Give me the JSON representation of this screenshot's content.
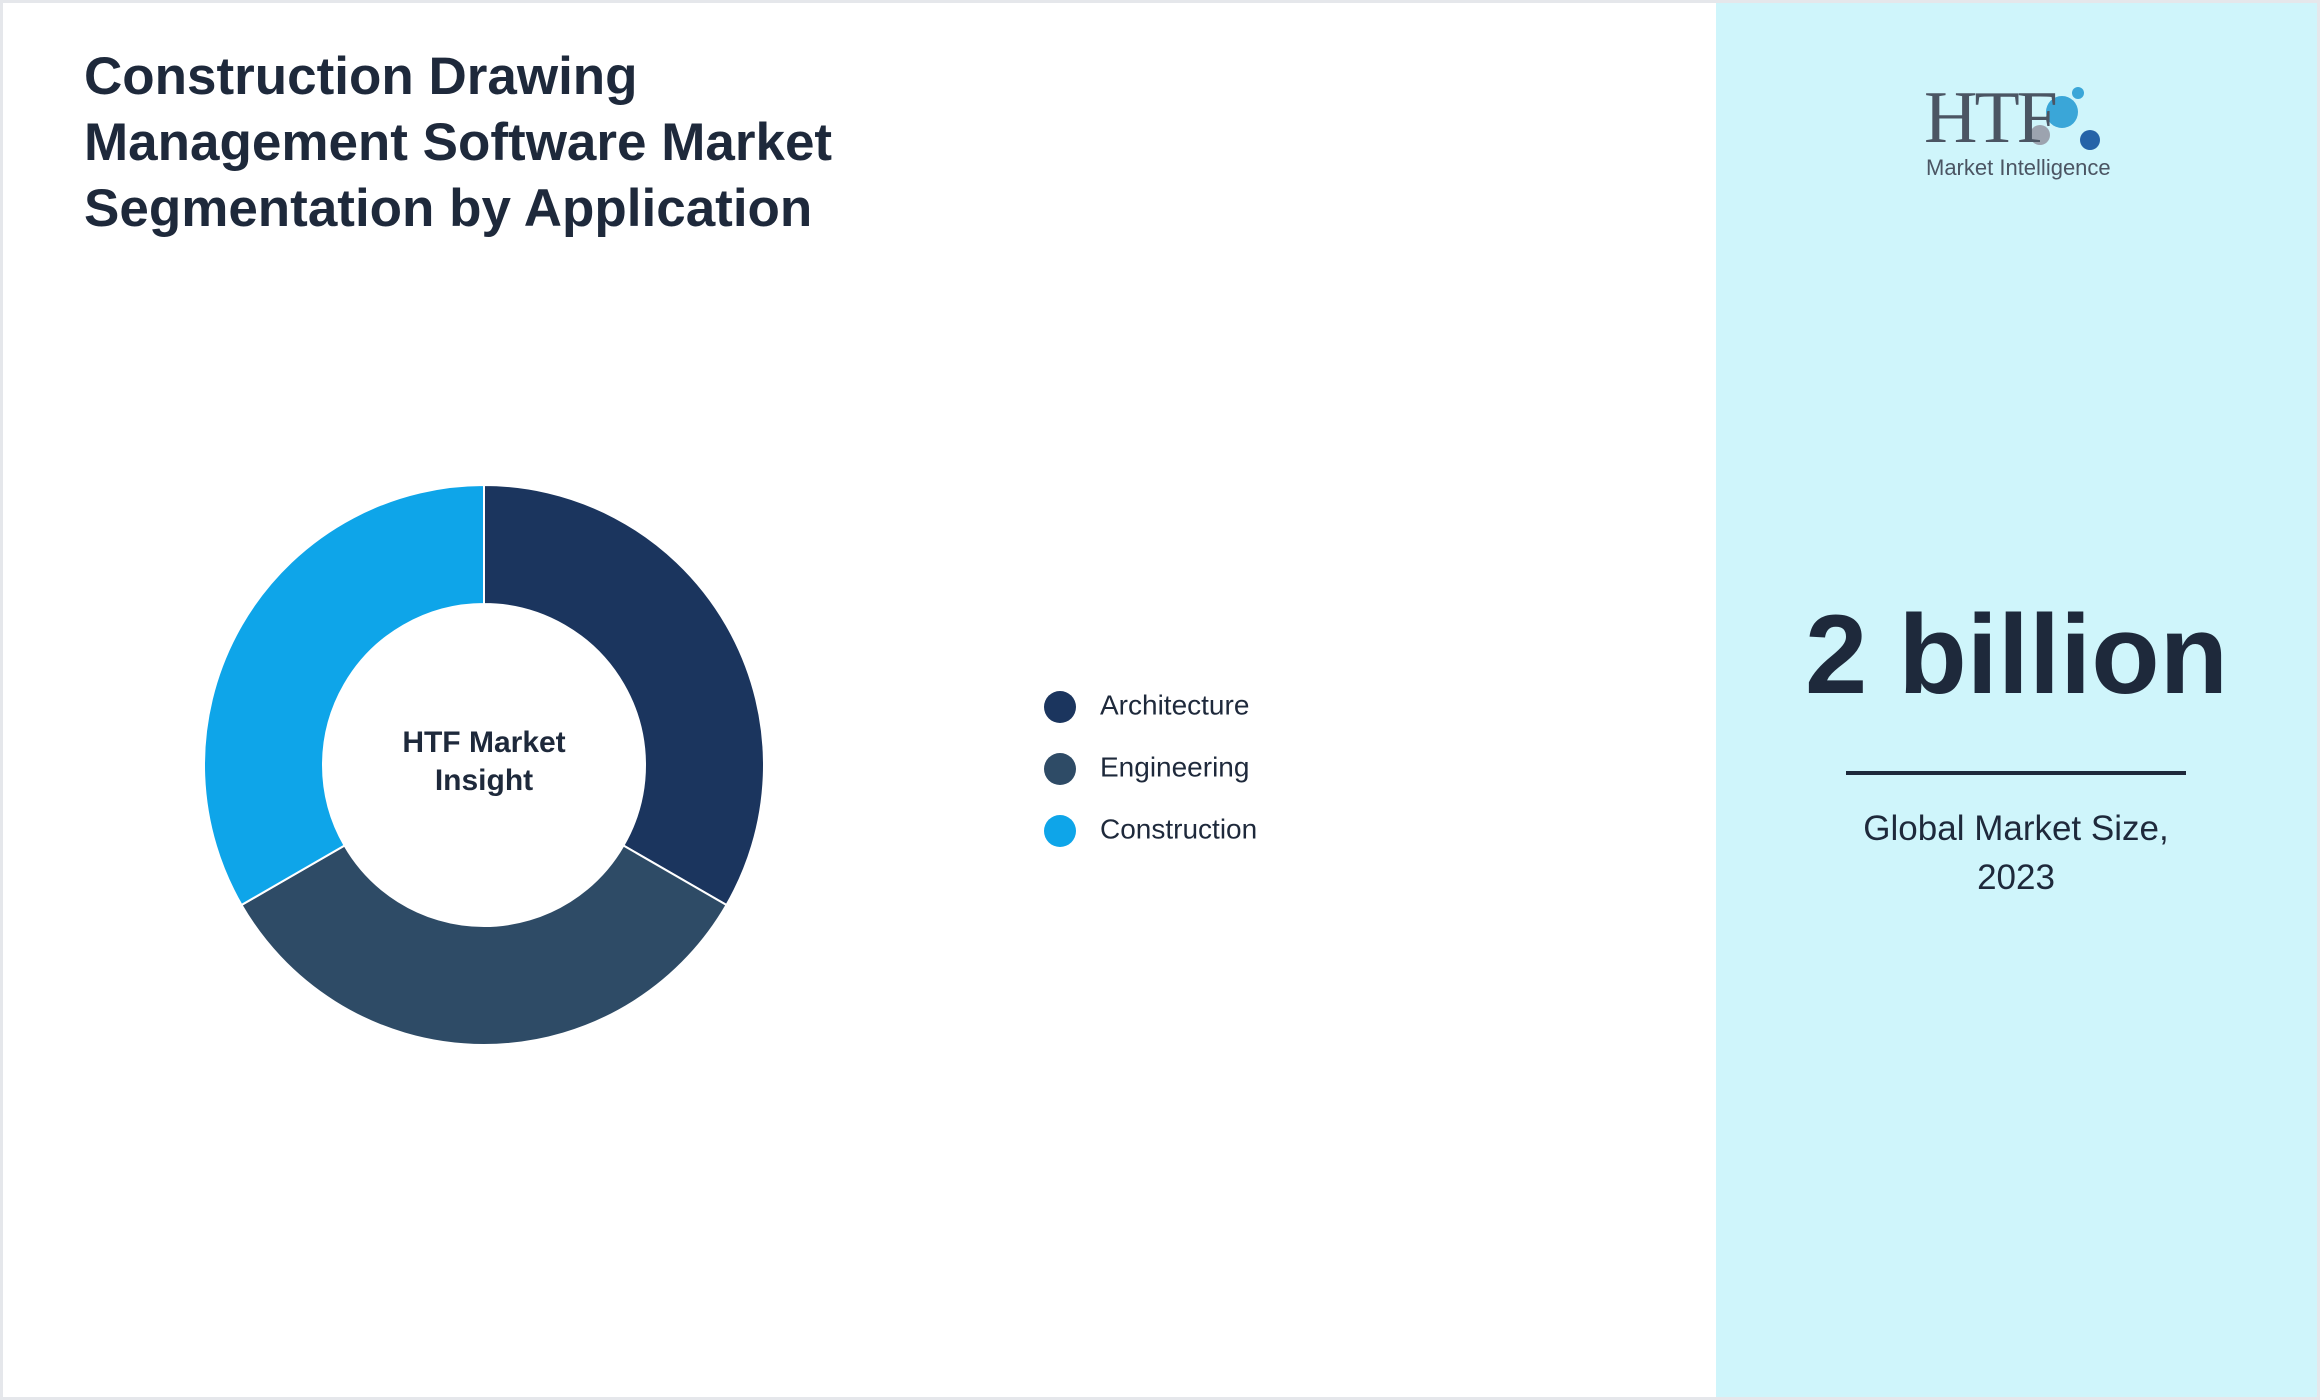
{
  "chart_data": {
    "type": "donut",
    "title": "Construction Drawing Management Software Market Segmentation by Application",
    "center_label": "HTF Market Insight",
    "categories": [
      "Architecture",
      "Engineering",
      "Construction"
    ],
    "values": [
      33.3,
      33.3,
      33.3
    ],
    "colors": [
      "#1b355e",
      "#2e4b66",
      "#0ea5e9"
    ],
    "legend": "right"
  },
  "logo": {
    "name": "HTF",
    "tagline": "Market Intelligence"
  },
  "stat": {
    "value": "2 billion",
    "label": "Global Market Size, 2023"
  }
}
